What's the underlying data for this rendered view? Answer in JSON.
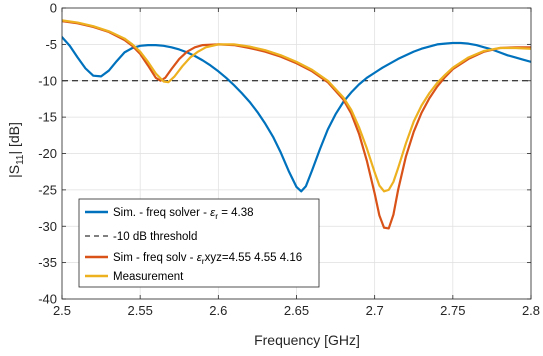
{
  "chart_data": {
    "type": "line",
    "xlabel": "Frequency [GHz]",
    "ylabel": "|S11| [dB]",
    "ylabel_main": "|S",
    "ylabel_sub": "11",
    "ylabel_tail": "| [dB]",
    "xlim": [
      2.5,
      2.8
    ],
    "ylim": [
      -40,
      0
    ],
    "xticks": [
      2.5,
      2.55,
      2.6,
      2.65,
      2.7,
      2.75,
      2.8
    ],
    "xtick_labels": [
      "2.5",
      "2.55",
      "2.6",
      "2.65",
      "2.7",
      "2.75",
      "2.8"
    ],
    "yticks": [
      0,
      -5,
      -10,
      -15,
      -20,
      -25,
      -30,
      -35,
      -40
    ],
    "ytick_labels": [
      "0",
      "-5",
      "-10",
      "-15",
      "-20",
      "-25",
      "-30",
      "-35",
      "-40"
    ],
    "grid": true,
    "legend_position": "bottom-left",
    "series": [
      {
        "name": "Sim. - freq solver - εr = 4.38",
        "legend_main": "Sim. - freq solver - ",
        "legend_eps": "ε",
        "legend_sub": "r",
        "legend_tail": " = 4.38",
        "color": "#0072BD",
        "style": "solid",
        "x": [
          2.5,
          2.505,
          2.51,
          2.515,
          2.52,
          2.525,
          2.53,
          2.535,
          2.54,
          2.545,
          2.55,
          2.555,
          2.56,
          2.565,
          2.57,
          2.575,
          2.58,
          2.585,
          2.59,
          2.595,
          2.6,
          2.605,
          2.61,
          2.615,
          2.62,
          2.625,
          2.63,
          2.635,
          2.64,
          2.645,
          2.65,
          2.653,
          2.656,
          2.66,
          2.665,
          2.67,
          2.675,
          2.68,
          2.685,
          2.69,
          2.695,
          2.7,
          2.705,
          2.71,
          2.715,
          2.72,
          2.725,
          2.73,
          2.735,
          2.74,
          2.745,
          2.75,
          2.755,
          2.76,
          2.765,
          2.77,
          2.775,
          2.78,
          2.785,
          2.79,
          2.795,
          2.8
        ],
        "y": [
          -4.0,
          -5.2,
          -6.8,
          -8.3,
          -9.3,
          -9.4,
          -8.6,
          -7.3,
          -6.1,
          -5.5,
          -5.2,
          -5.1,
          -5.1,
          -5.2,
          -5.4,
          -5.7,
          -6.1,
          -6.6,
          -7.2,
          -7.9,
          -8.7,
          -9.6,
          -10.6,
          -11.7,
          -12.9,
          -14.3,
          -15.9,
          -17.7,
          -19.9,
          -22.4,
          -24.6,
          -25.2,
          -24.5,
          -22.3,
          -19.4,
          -16.7,
          -14.6,
          -12.9,
          -11.6,
          -10.5,
          -9.6,
          -8.9,
          -8.2,
          -7.6,
          -7.0,
          -6.5,
          -6.0,
          -5.6,
          -5.3,
          -5.0,
          -4.9,
          -4.8,
          -4.8,
          -4.9,
          -5.1,
          -5.4,
          -5.7,
          -6.1,
          -6.5,
          -6.8,
          -7.1,
          -7.4
        ]
      },
      {
        "name": "-10 dB threshold",
        "color": "#000000",
        "style": "dashed",
        "x": [
          2.5,
          2.8
        ],
        "y": [
          -10,
          -10
        ]
      },
      {
        "name": "Sim - freq solv - εrxyz=4.55 4.55 4.16",
        "legend_main": "Sim - freq solv - ",
        "legend_eps": "ε",
        "legend_sub": "r",
        "legend_tail": "xyz=4.55 4.55 4.16",
        "color": "#D95319",
        "style": "solid",
        "x": [
          2.5,
          2.51,
          2.52,
          2.53,
          2.54,
          2.545,
          2.55,
          2.555,
          2.56,
          2.563,
          2.566,
          2.57,
          2.575,
          2.58,
          2.585,
          2.59,
          2.6,
          2.61,
          2.62,
          2.63,
          2.64,
          2.65,
          2.66,
          2.67,
          2.68,
          2.685,
          2.69,
          2.695,
          2.7,
          2.703,
          2.706,
          2.709,
          2.712,
          2.715,
          2.72,
          2.725,
          2.73,
          2.735,
          2.74,
          2.745,
          2.75,
          2.76,
          2.77,
          2.78,
          2.79,
          2.8
        ],
        "y": [
          -1.8,
          -2.1,
          -2.6,
          -3.3,
          -4.4,
          -5.2,
          -6.3,
          -7.9,
          -9.6,
          -10.0,
          -9.6,
          -8.4,
          -7.0,
          -6.0,
          -5.4,
          -5.1,
          -5.0,
          -5.1,
          -5.5,
          -6.0,
          -6.7,
          -7.6,
          -8.7,
          -10.2,
          -12.6,
          -14.5,
          -17.3,
          -21.0,
          -25.5,
          -28.5,
          -30.2,
          -30.3,
          -28.4,
          -25.0,
          -20.4,
          -17.0,
          -14.4,
          -12.4,
          -10.8,
          -9.5,
          -8.4,
          -7.0,
          -6.0,
          -5.5,
          -5.4,
          -5.4
        ]
      },
      {
        "name": "Measurement",
        "color": "#EDB120",
        "style": "solid",
        "x": [
          2.5,
          2.51,
          2.52,
          2.53,
          2.54,
          2.545,
          2.55,
          2.555,
          2.56,
          2.565,
          2.568,
          2.572,
          2.577,
          2.582,
          2.587,
          2.592,
          2.6,
          2.61,
          2.62,
          2.63,
          2.64,
          2.65,
          2.66,
          2.67,
          2.68,
          2.685,
          2.69,
          2.695,
          2.7,
          2.703,
          2.706,
          2.709,
          2.712,
          2.715,
          2.72,
          2.725,
          2.73,
          2.735,
          2.74,
          2.745,
          2.75,
          2.76,
          2.77,
          2.78,
          2.79,
          2.8
        ],
        "y": [
          -1.7,
          -2.0,
          -2.5,
          -3.2,
          -4.2,
          -5.0,
          -6.0,
          -7.4,
          -9.0,
          -10.1,
          -10.2,
          -9.4,
          -8.0,
          -6.8,
          -6.0,
          -5.4,
          -5.0,
          -5.0,
          -5.3,
          -5.8,
          -6.5,
          -7.4,
          -8.5,
          -10.0,
          -12.3,
          -14.0,
          -16.4,
          -19.3,
          -22.6,
          -24.4,
          -25.2,
          -25.0,
          -23.9,
          -22.0,
          -18.6,
          -15.6,
          -13.4,
          -11.7,
          -10.3,
          -9.2,
          -8.2,
          -6.8,
          -5.9,
          -5.5,
          -5.5,
          -5.6
        ]
      }
    ]
  }
}
